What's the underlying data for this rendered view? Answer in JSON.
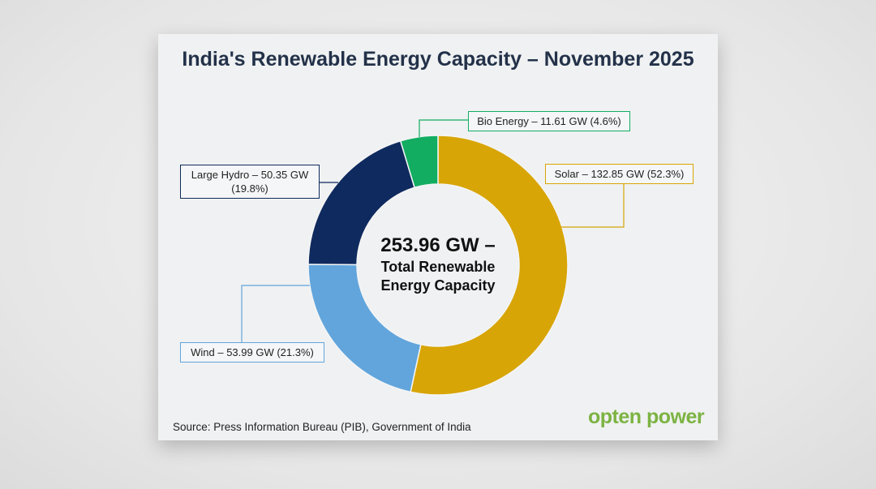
{
  "chart_data": {
    "type": "pie",
    "variant": "donut",
    "title": "India's Renewable Energy Capacity – November 2025",
    "unit": "GW",
    "slices": [
      {
        "name": "Solar",
        "value": 132.85,
        "percent": 52.3,
        "color": "#d8a506",
        "label": "Solar – 132.85 GW (52.3%)"
      },
      {
        "name": "Wind",
        "value": 53.99,
        "percent": 21.3,
        "color": "#62a5dc",
        "label": "Wind – 53.99 GW (21.3%)"
      },
      {
        "name": "Large Hydro",
        "value": 50.35,
        "percent": 19.8,
        "color": "#0f2a5e",
        "label": "Large Hydro – 50.35 GW (19.8%)"
      },
      {
        "name": "Bio Energy",
        "value": 11.61,
        "percent": 4.6,
        "color": "#13ad62",
        "label": "Bio Energy – 11.61 GW (4.6%)"
      }
    ],
    "center_total": "253.96 GW –",
    "center_caption": "Total Renewable Energy Capacity",
    "source": "Source: Press Information Bureau (PIB), Government of India"
  },
  "brand": {
    "logo_text": "opten power",
    "color": "#7cb342"
  }
}
